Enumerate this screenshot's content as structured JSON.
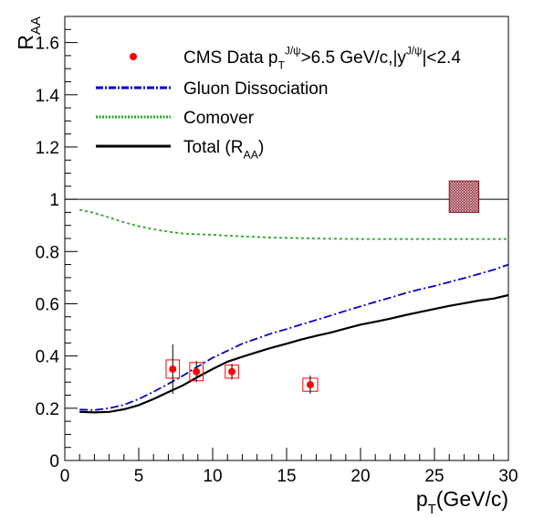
{
  "chart_data": {
    "type": "line",
    "xlabel": {
      "main": "p",
      "sub": "T",
      "tail": "(GeV/c)"
    },
    "ylabel": {
      "main": "R",
      "sub": "AA"
    },
    "xlim": [
      0,
      30
    ],
    "ylim": [
      0,
      1.7
    ],
    "x_ticks": [
      0,
      5,
      10,
      15,
      20,
      25,
      30
    ],
    "y_ticks": [
      0,
      0.2,
      0.4,
      0.6,
      0.8,
      1,
      1.2,
      1.4,
      1.6
    ],
    "x_tick_labels": [
      "0",
      "5",
      "10",
      "15",
      "20",
      "25",
      "30"
    ],
    "y_tick_labels": [
      "0",
      "0.2",
      "0.4",
      "0.6",
      "0.8",
      "1",
      "1.2",
      "1.4",
      "1.6"
    ],
    "grid": false,
    "reference_line": 1.0,
    "global_uncertainty_box": {
      "x": [
        26.0,
        28.0
      ],
      "y": [
        0.95,
        1.07
      ],
      "color": "#7a1020"
    },
    "legend": {
      "placement": "top-left",
      "entries": [
        {
          "kind": "marker",
          "color": "#ff0000",
          "parts": [
            {
              "t": "CMS Data p"
            },
            {
              "t": "T",
              "pos": "sub"
            },
            {
              "t": "J/ψ",
              "pos": "sup"
            },
            {
              "t": ">6.5 GeV/c,|y"
            },
            {
              "t": "J/ψ",
              "pos": "sup"
            },
            {
              "t": "|<2.4"
            }
          ]
        },
        {
          "kind": "line",
          "color": "#0000cc",
          "dash": "dashdot",
          "parts": [
            {
              "t": "Gluon Dissociation"
            }
          ]
        },
        {
          "kind": "line",
          "color": "#22aa22",
          "dash": "dotted",
          "parts": [
            {
              "t": "Comover"
            }
          ]
        },
        {
          "kind": "line",
          "color": "#000000",
          "dash": "solid",
          "parts": [
            {
              "t": "Total (R"
            },
            {
              "t": "AA",
              "pos": "sub"
            },
            {
              "t": ")"
            }
          ]
        }
      ]
    },
    "series": [
      {
        "name": "Gluon Dissociation",
        "color": "#0000cc",
        "dash": "dashdot",
        "x": [
          1,
          2,
          3,
          4,
          5,
          6,
          7,
          8,
          9,
          10,
          11,
          12,
          13,
          14,
          15,
          16,
          17,
          18,
          19,
          20,
          21,
          22,
          23,
          24,
          25,
          26,
          27,
          28,
          29,
          30
        ],
        "y": [
          0.195,
          0.193,
          0.2,
          0.213,
          0.235,
          0.263,
          0.293,
          0.325,
          0.36,
          0.393,
          0.42,
          0.447,
          0.467,
          0.487,
          0.503,
          0.521,
          0.538,
          0.555,
          0.573,
          0.59,
          0.607,
          0.623,
          0.64,
          0.655,
          0.668,
          0.683,
          0.698,
          0.714,
          0.73,
          0.75
        ]
      },
      {
        "name": "Comover",
        "color": "#22aa22",
        "dash": "dotted",
        "x": [
          1,
          2,
          3,
          4,
          5,
          6,
          7,
          8,
          9,
          10,
          12,
          14,
          16,
          18,
          20,
          22,
          24,
          26,
          28,
          30
        ],
        "y": [
          0.96,
          0.948,
          0.93,
          0.912,
          0.897,
          0.885,
          0.876,
          0.869,
          0.866,
          0.864,
          0.858,
          0.853,
          0.851,
          0.849,
          0.848,
          0.848,
          0.848,
          0.848,
          0.848,
          0.848
        ]
      },
      {
        "name": "Total (RAA)",
        "color": "#000000",
        "dash": "solid",
        "x": [
          1,
          2,
          3,
          4,
          5,
          6,
          7,
          8,
          9,
          10,
          11,
          12,
          13,
          14,
          15,
          16,
          17,
          18,
          19,
          20,
          21,
          22,
          23,
          24,
          25,
          26,
          27,
          28,
          29,
          30
        ],
        "y": [
          0.186,
          0.184,
          0.186,
          0.196,
          0.212,
          0.235,
          0.262,
          0.288,
          0.32,
          0.35,
          0.378,
          0.397,
          0.415,
          0.432,
          0.447,
          0.463,
          0.477,
          0.49,
          0.505,
          0.52,
          0.531,
          0.543,
          0.556,
          0.568,
          0.58,
          0.592,
          0.602,
          0.612,
          0.62,
          0.633
        ]
      }
    ],
    "data_points": {
      "name": "CMS Data",
      "color": "#ff0000",
      "points": [
        {
          "x": 7.3,
          "y": 0.35,
          "stat_err": 0.095,
          "x_half_width": 0.45,
          "sys_err": 0.035
        },
        {
          "x": 8.9,
          "y": 0.34,
          "stat_err": 0.04,
          "x_half_width": 0.45,
          "sys_err": 0.035
        },
        {
          "x": 11.3,
          "y": 0.34,
          "stat_err": 0.03,
          "x_half_width": 0.45,
          "sys_err": 0.025
        },
        {
          "x": 16.6,
          "y": 0.29,
          "stat_err": 0.035,
          "x_half_width": 0.5,
          "sys_err": 0.025
        }
      ]
    }
  }
}
